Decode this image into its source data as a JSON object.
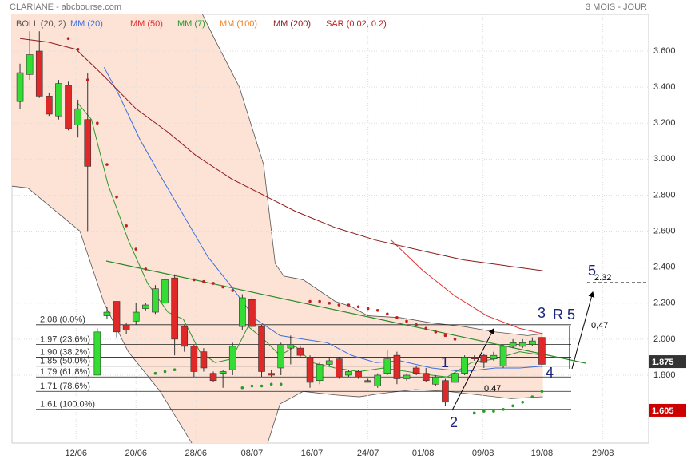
{
  "chart_data": {
    "type": "candlestick",
    "title": "CLARIANE - abcbourse.com",
    "period": "3 MOIS - JOUR",
    "x": [
      0,
      1,
      2,
      3,
      4,
      5,
      6,
      7,
      8,
      9,
      10,
      11,
      12,
      13,
      14,
      15,
      16,
      17,
      18,
      19,
      20,
      21,
      22,
      23,
      24,
      25,
      26,
      27,
      28,
      29,
      30,
      31,
      32,
      33,
      34,
      35,
      36,
      37,
      38,
      39,
      40,
      41,
      42,
      43,
      44,
      45,
      46,
      47,
      48,
      49,
      50,
      51,
      52,
      53,
      54
    ],
    "open": [
      3.32,
      3.47,
      3.6,
      3.35,
      3.24,
      3.41,
      3.19,
      3.22,
      1.8,
      2.13,
      2.21,
      2.08,
      2.1,
      2.17,
      2.15,
      2.2,
      2.34,
      2.07,
      1.96,
      1.93,
      1.81,
      1.81,
      1.83,
      2.07,
      2.22,
      2.07,
      1.81,
      1.84,
      1.95,
      1.95,
      1.9,
      1.77,
      1.86,
      1.89,
      1.8,
      1.82,
      1.77,
      1.74,
      1.81,
      1.91,
      1.78,
      1.84,
      1.81,
      1.75,
      1.77,
      1.76,
      1.81,
      1.9,
      1.91,
      1.89,
      1.85,
      1.96,
      1.96,
      1.97,
      2.01
    ],
    "high": [
      3.53,
      3.71,
      3.71,
      3.37,
      3.44,
      3.43,
      3.33,
      3.48,
      2.06,
      2.18,
      2.21,
      2.09,
      2.2,
      2.2,
      2.3,
      2.35,
      2.36,
      2.08,
      1.97,
      1.95,
      1.82,
      1.83,
      1.98,
      2.25,
      2.24,
      2.08,
      1.83,
      1.98,
      2.02,
      1.96,
      1.91,
      1.87,
      1.9,
      1.9,
      1.83,
      1.83,
      1.78,
      1.81,
      1.94,
      1.93,
      1.81,
      1.85,
      1.84,
      1.8,
      1.78,
      1.84,
      1.91,
      1.91,
      1.92,
      1.93,
      1.97,
      2.0,
      2.0,
      2.01,
      2.04
    ],
    "low": [
      3.28,
      3.44,
      3.34,
      3.24,
      3.22,
      3.16,
      3.12,
      2.6,
      1.8,
      2.11,
      2.01,
      2.03,
      2.08,
      2.16,
      2.14,
      2.19,
      1.91,
      1.93,
      1.79,
      1.82,
      1.76,
      1.73,
      1.8,
      2.05,
      2.06,
      1.79,
      1.79,
      1.8,
      1.86,
      1.9,
      1.73,
      1.75,
      1.85,
      1.78,
      1.79,
      1.78,
      1.76,
      1.73,
      1.8,
      1.75,
      1.77,
      1.8,
      1.76,
      1.74,
      1.63,
      1.74,
      1.8,
      1.88,
      1.84,
      1.88,
      1.84,
      1.95,
      1.95,
      1.96,
      1.84
    ],
    "close": [
      3.48,
      3.58,
      3.35,
      3.25,
      3.42,
      3.17,
      3.28,
      2.96,
      2.04,
      2.15,
      2.04,
      2.05,
      2.15,
      2.19,
      2.28,
      2.33,
      2.0,
      1.96,
      1.82,
      1.84,
      1.77,
      1.82,
      1.96,
      2.23,
      2.07,
      1.82,
      1.8,
      1.97,
      1.97,
      1.91,
      1.76,
      1.86,
      1.88,
      1.79,
      1.82,
      1.79,
      1.76,
      1.8,
      1.89,
      1.78,
      1.8,
      1.81,
      1.77,
      1.79,
      1.65,
      1.81,
      1.9,
      1.89,
      1.87,
      1.91,
      1.96,
      1.98,
      1.98,
      1.99,
      1.86
    ],
    "up_color": "#33dd33",
    "down_color": "#e02828",
    "xlim": [
      -0.83,
      65.04
    ],
    "ylim": [
      1.423,
      3.804
    ],
    "xticks": [
      {
        "value": 5.8,
        "label": "12/06"
      },
      {
        "value": 12,
        "label": "20/06"
      },
      {
        "value": 18.2,
        "label": "28/06"
      },
      {
        "value": 24,
        "label": "08/07"
      },
      {
        "value": 30.2,
        "label": "16/07"
      },
      {
        "value": 36,
        "label": "24/07"
      },
      {
        "value": 41.7,
        "label": "01/08"
      },
      {
        "value": 47.9,
        "label": "09/08"
      },
      {
        "value": 54,
        "label": "19/08"
      },
      {
        "value": 60.3,
        "label": "29/08"
      }
    ],
    "yticks": [
      {
        "value": 1.8,
        "label": "1.800"
      },
      {
        "value": 2.0,
        "label": "2.000"
      },
      {
        "value": 2.2,
        "label": "2.200"
      },
      {
        "value": 2.4,
        "label": "2.400"
      },
      {
        "value": 2.6,
        "label": "2.600"
      },
      {
        "value": 2.8,
        "label": "2.800"
      },
      {
        "value": 3.0,
        "label": "3.000"
      },
      {
        "value": 3.2,
        "label": "3.200"
      },
      {
        "value": 3.4,
        "label": "3.400"
      },
      {
        "value": 3.6,
        "label": "3.600"
      }
    ],
    "grid": true,
    "band": {
      "name": "BOLL (20, 2)",
      "color": "#555555",
      "fill": "#fde3d6",
      "upper": {
        "x": [
          -0.83,
          10,
          18,
          20.2,
          22.7,
          25.2,
          26.4,
          27.3,
          29.3,
          32.6,
          34.3,
          36,
          39.3,
          42.6,
          45.9,
          49.2,
          52.5,
          54.1
        ],
        "values": [
          3.95,
          3.95,
          3.9,
          3.66,
          3.4,
          2.97,
          2.42,
          2.35,
          2.33,
          2.21,
          2.18,
          2.13,
          2.12,
          2.09,
          2.07,
          2.04,
          2.02,
          2.03
        ]
      },
      "lower": {
        "x": [
          -0.83,
          0.8,
          6.2,
          8.7,
          11.2,
          14.5,
          17.8,
          21,
          25.2,
          26.9,
          29.3,
          32.6,
          35.1,
          37.6,
          40.9,
          44.2,
          47.5,
          50.8,
          54.1
        ],
        "values": [
          2.85,
          2.84,
          2.6,
          2.2,
          1.93,
          1.71,
          1.42,
          1.3,
          1.35,
          1.64,
          1.71,
          1.69,
          1.68,
          1.7,
          1.72,
          1.71,
          1.69,
          1.67,
          1.68
        ]
      }
    },
    "series": [
      {
        "name": "MM (20)",
        "color": "#3d6fe0",
        "x": [
          8.7,
          10.3,
          12.4,
          14.5,
          16.9,
          19.4,
          21.9,
          24.4,
          26.9,
          29.3,
          31.8,
          34.3,
          36.8,
          39.3,
          42.6,
          45.9,
          49.2,
          51.7,
          54.1
        ],
        "values": [
          3.51,
          3.35,
          3.11,
          2.91,
          2.69,
          2.46,
          2.29,
          2.11,
          2.02,
          2.0,
          1.98,
          1.91,
          1.87,
          1.88,
          1.84,
          1.82,
          1.84,
          1.84,
          1.85
        ]
      },
      {
        "name": "MM (50)",
        "color": "#e03030",
        "x": [
          38.4,
          41.7,
          45,
          48.3,
          51.7,
          54.1
        ],
        "values": [
          2.55,
          2.38,
          2.24,
          2.13,
          2.06,
          2.03
        ]
      },
      {
        "name": "MM (7)",
        "color": "#2a9a2a",
        "x": [
          6,
          7.4,
          9.1,
          11.2,
          13.2,
          15.3,
          16.9,
          18.6,
          20.2,
          21.9,
          23.6,
          25.2,
          26.9,
          28.5,
          30.2,
          32.6,
          35.1,
          37.6,
          40.1,
          42.6,
          44.2,
          46.7,
          49.2,
          51.7,
          54.1
        ],
        "values": [
          3.31,
          3.22,
          2.86,
          2.55,
          2.31,
          2.15,
          2.11,
          1.93,
          1.87,
          1.89,
          2.07,
          2.0,
          1.91,
          1.96,
          1.87,
          1.84,
          1.82,
          1.84,
          1.82,
          1.8,
          1.79,
          1.87,
          1.89,
          1.93,
          1.91
        ]
      },
      {
        "name": "MM (100)",
        "color": "#f08020",
        "x": [],
        "values": []
      },
      {
        "name": "MM (200)",
        "color": "#8b1a1a",
        "x": [
          0,
          2.9,
          5.8,
          8.7,
          12,
          15.3,
          18.2,
          21.9,
          25.2,
          28.5,
          32.6,
          36.8,
          41.7,
          45.9,
          50,
          54.1
        ],
        "values": [
          3.67,
          3.65,
          3.61,
          3.46,
          3.28,
          3.15,
          3.02,
          2.89,
          2.8,
          2.71,
          2.62,
          2.55,
          2.49,
          2.44,
          2.41,
          2.38
        ]
      }
    ],
    "sar": {
      "name": "SAR (0.02, 0.2)",
      "color": "#c02020",
      "below_color": "#2a9a2a",
      "x": [
        5,
        6,
        7,
        8,
        9,
        10,
        11,
        12,
        13,
        14,
        15,
        16,
        18,
        19,
        20,
        21,
        22,
        23,
        24,
        25,
        26,
        27,
        30,
        31,
        32,
        33,
        34,
        35,
        36,
        37,
        38,
        39,
        40,
        41,
        42,
        43,
        44,
        45,
        47,
        48,
        49,
        50,
        51,
        52,
        53,
        54
      ],
      "values": [
        3.67,
        3.61,
        3.44,
        3.2,
        2.97,
        2.79,
        2.63,
        2.5,
        2.39,
        1.81,
        1.82,
        1.83,
        2.33,
        2.32,
        2.31,
        2.29,
        2.27,
        1.73,
        1.74,
        1.74,
        1.75,
        1.75,
        2.21,
        2.21,
        2.2,
        2.19,
        2.19,
        2.18,
        2.17,
        2.16,
        2.14,
        2.12,
        2.1,
        2.08,
        2.06,
        2.04,
        2.02,
        2.0,
        1.59,
        1.6,
        1.6,
        1.61,
        1.63,
        1.65,
        1.68,
        1.71
      ]
    },
    "fib_levels": [
      {
        "value": 2.08,
        "label": "2.08 (0.0%)"
      },
      {
        "value": 1.97,
        "label": "1.97 (23.6%)"
      },
      {
        "value": 1.9,
        "label": "1.90 (38.2%)"
      },
      {
        "value": 1.85,
        "label": "1.85 (50.0%)"
      },
      {
        "value": 1.79,
        "label": "1.79 (61.8%)"
      },
      {
        "value": 1.71,
        "label": "1.71 (78.6%)"
      },
      {
        "value": 1.61,
        "label": "1.61 (100.0%)"
      }
    ],
    "annotations": [
      "1",
      "2",
      "3",
      "R 5",
      "4",
      "5",
      "0,47",
      "0.47",
      "2.32"
    ],
    "price_badges": [
      {
        "value": 1.875,
        "color": "#333333"
      },
      {
        "value": 1.605,
        "color": "#cc0000"
      }
    ]
  }
}
